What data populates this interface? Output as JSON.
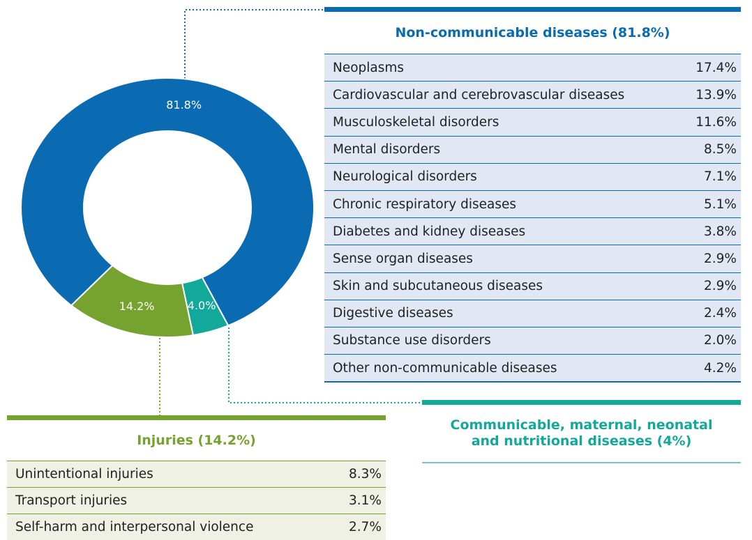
{
  "chart_data": {
    "type": "donut",
    "values": [
      81.8,
      4.0,
      14.2
    ],
    "value_labels": [
      "81.8%",
      "4.0%",
      "14.2%"
    ],
    "colors": [
      "#0a6bb3",
      "#12a89a",
      "#76a22f"
    ]
  },
  "panels": [
    {
      "title": "Non-communicable diseases (81.8%)",
      "color": "#0a6bb3",
      "row_color": "#e1e8f4",
      "rows": [
        [
          "Neoplasms",
          "17.4%"
        ],
        [
          "Cardiovascular and cerebrovascular diseases",
          "13.9%"
        ],
        [
          "Musculoskeletal disorders",
          "11.6%"
        ],
        [
          "Mental disorders",
          "8.5%"
        ],
        [
          "Neurological disorders",
          "7.1%"
        ],
        [
          "Chronic respiratory diseases",
          "5.1%"
        ],
        [
          "Diabetes and kidney diseases",
          "3.8%"
        ],
        [
          "Sense organ diseases",
          "2.9%"
        ],
        [
          "Skin and subcutaneous diseases",
          "2.9%"
        ],
        [
          "Digestive diseases",
          "2.4%"
        ],
        [
          "Substance use disorders",
          "2.0%"
        ],
        [
          "Other non-communicable diseases",
          "4.2%"
        ]
      ]
    },
    {
      "title": "Communicable, maternal, neonatal and nutritional diseases (4%)",
      "color": "#12a89a",
      "row_color": "#ffffff",
      "rows": []
    },
    {
      "title": "Injuries (14.2%)",
      "color": "#76a22f",
      "row_color": "#eef1e4",
      "rows": [
        [
          "Unintentional injuries",
          "8.3%"
        ],
        [
          "Transport injuries",
          "3.1%"
        ],
        [
          "Self-harm and interpersonal violence",
          "2.7%"
        ]
      ]
    }
  ]
}
